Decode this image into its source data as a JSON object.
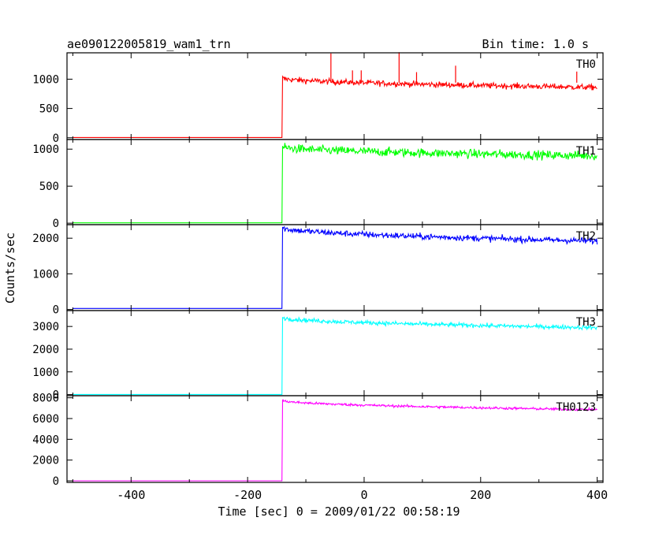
{
  "header": {
    "title": "ae090122005819_wam1_trn",
    "bin_time": "Bin time: 1.0 s"
  },
  "chart_data": {
    "type": "line",
    "xlabel": "Time [sec] 0 = 2009/01/22 00:58:19",
    "ylabel": "Counts/sec",
    "xlim": [
      -510,
      410
    ],
    "x_ticks": [
      "-400",
      "-200",
      "0",
      "200",
      "400"
    ],
    "x_tick_values": [
      -400,
      -200,
      0,
      200,
      400
    ],
    "x_start": -500,
    "x_end": 400,
    "step_time": -140,
    "grid": false,
    "panels": [
      {
        "name": "TH0",
        "color": "#ff0000",
        "ylim": [
          -30,
          1450
        ],
        "y_ticks": [
          0,
          500,
          1000
        ],
        "pre_level": 5,
        "peak": 1020,
        "final": 860,
        "noise": 45,
        "spikes": [
          [
            -57,
            1440
          ],
          [
            -20,
            1150
          ],
          [
            -5,
            1150
          ],
          [
            60,
            1460
          ],
          [
            90,
            1120
          ],
          [
            157,
            1230
          ],
          [
            365,
            1130
          ]
        ]
      },
      {
        "name": "TH1",
        "color": "#00ff00",
        "ylim": [
          -20,
          1130
        ],
        "y_ticks": [
          0,
          500,
          1000
        ],
        "pre_level": 5,
        "peak": 1030,
        "final": 910,
        "noise": 55,
        "spikes": []
      },
      {
        "name": "TH2",
        "color": "#0000ff",
        "ylim": [
          -30,
          2380
        ],
        "y_ticks": [
          0,
          1000,
          2000
        ],
        "pre_level": 30,
        "peak": 2300,
        "final": 1920,
        "noise": 80,
        "spikes": []
      },
      {
        "name": "TH3",
        "color": "#00ffff",
        "ylim": [
          -50,
          3700
        ],
        "y_ticks": [
          0,
          1000,
          2000,
          3000
        ],
        "pre_level": 5,
        "peak": 3400,
        "final": 2950,
        "noise": 85,
        "spikes": []
      },
      {
        "name": "TH0123",
        "color": "#ff00ff",
        "ylim": [
          -150,
          8200
        ],
        "y_ticks": [
          0,
          2000,
          4000,
          6000,
          8000
        ],
        "pre_level": 5,
        "peak": 7750,
        "final": 6850,
        "noise": 110,
        "spikes": []
      }
    ]
  }
}
